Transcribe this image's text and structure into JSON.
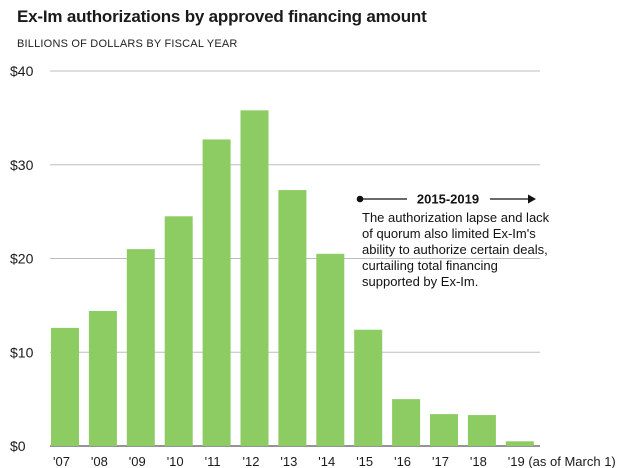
{
  "chart_data": {
    "type": "bar",
    "title": "Ex-Im authorizations by approved financing amount",
    "subtitle": "BILLIONS OF DOLLARS BY FISCAL YEAR",
    "categories": [
      "'07",
      "'08",
      "'09",
      "'10",
      "'11",
      "'12",
      "'13",
      "'14",
      "'15",
      "'16",
      "'17",
      "'18",
      "'19 (as of March 1)"
    ],
    "values": [
      12.6,
      14.4,
      21.0,
      24.5,
      32.7,
      35.8,
      27.3,
      20.5,
      12.4,
      5.0,
      3.4,
      3.3,
      0.5
    ],
    "yticks": [
      "$0",
      "$10",
      "$20",
      "$30",
      "$40"
    ],
    "ylim": [
      0,
      40
    ],
    "grid": true,
    "bar_color": "#8dcb63",
    "annotation": {
      "range": "2015-2019",
      "text": "The authorization lapse and lack of quorum also limited Ex-Im's ability to authorize certain deals, curtailing total financing supported by Ex-Im."
    }
  }
}
